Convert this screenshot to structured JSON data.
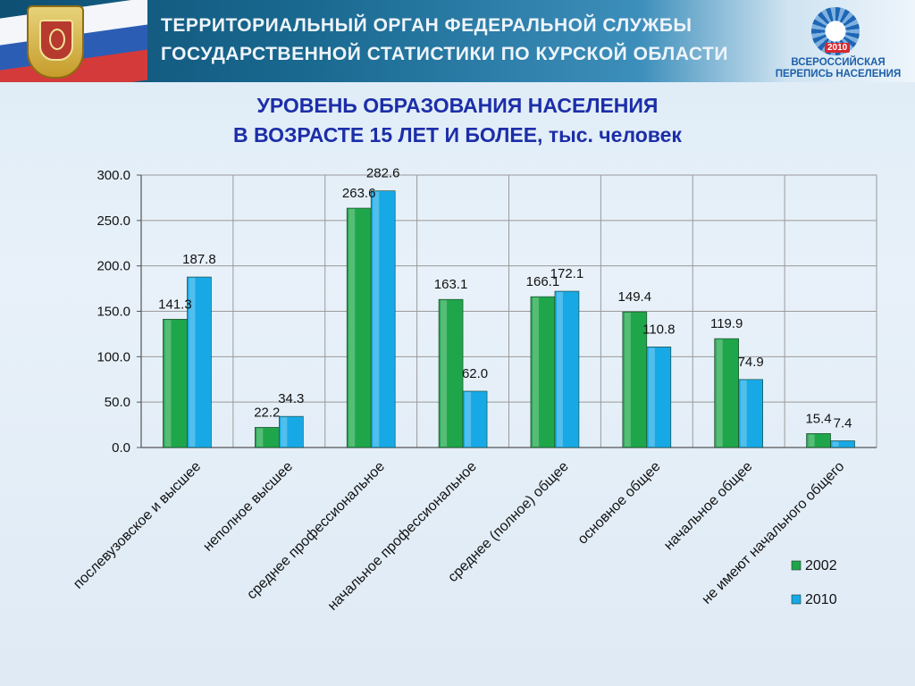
{
  "header": {
    "line1": "ТЕРРИТОРИАЛЬНЫЙ ОРГАН ФЕДЕРАЛЬНОЙ СЛУЖБЫ",
    "line2": "ГОСУДАРСТВЕННОЙ СТАТИСТИКИ ПО КУРСКОЙ ОБЛАСТИ",
    "census_year": "2010",
    "census_line1": "ВСЕРОССИЙСКАЯ",
    "census_line2": "ПЕРЕПИСЬ НАСЕЛЕНИЯ"
  },
  "colors": {
    "series_2002": "#1fa64a",
    "series_2010": "#17a9e6",
    "title": "#1c2ea8"
  },
  "chart_data": {
    "type": "bar",
    "title_line1": "УРОВЕНЬ ОБРАЗОВАНИЯ НАСЕЛЕНИЯ",
    "title_line2": "В ВОЗРАСТЕ 15 ЛЕТ И БОЛЕЕ, тыс. человек",
    "categories": [
      "послевузовское и высшее",
      "неполное высшее",
      "среднее профессиональное",
      "начальное профессиональное",
      "среднее (полное) общее",
      "основное общее",
      "начальное общее",
      "не имеют начального общего"
    ],
    "series": [
      {
        "name": "2002",
        "values": [
          141.3,
          22.2,
          263.6,
          163.1,
          166.1,
          149.4,
          119.9,
          15.4
        ]
      },
      {
        "name": "2010",
        "values": [
          187.8,
          34.3,
          282.6,
          62.0,
          172.1,
          110.8,
          74.9,
          7.4
        ]
      }
    ],
    "y_ticks": [
      "0.0",
      "50.0",
      "100.0",
      "150.0",
      "200.0",
      "250.0",
      "300.0"
    ],
    "ylim": [
      0,
      300
    ],
    "grid": true,
    "legend_position": "right"
  }
}
